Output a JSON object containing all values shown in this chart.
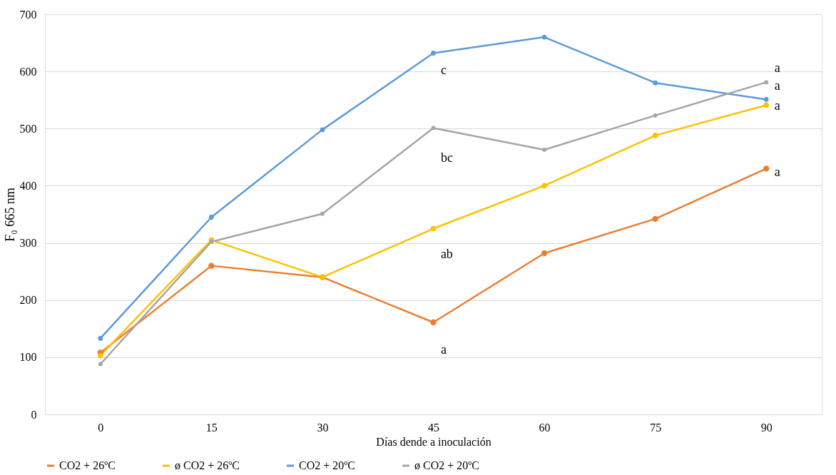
{
  "chart_data": {
    "type": "line",
    "xlabel": "Días dende a inoculación",
    "ylabel": "F₀ 665 nm",
    "categories": [
      "0",
      "15",
      "30",
      "45",
      "60",
      "75",
      "90"
    ],
    "series": [
      {
        "name": "CO2 + 26ºC",
        "color": "#ed7d31",
        "values": [
          108,
          260,
          240,
          161,
          282,
          342,
          430
        ]
      },
      {
        "name": "ø CO2 + 26ºC",
        "color": "#ffc000",
        "values": [
          103,
          305,
          240,
          325,
          400,
          488,
          541
        ]
      },
      {
        "name": "CO2 + 20ºC",
        "color": "#5b9bd5",
        "values": [
          133,
          345,
          498,
          632,
          660,
          580,
          551
        ]
      },
      {
        "name": "ø CO2 + 20ºC",
        "color": "#a5a5a5",
        "values": [
          88,
          302,
          351,
          501,
          463,
          523,
          581
        ]
      }
    ],
    "ylim": [
      0,
      700
    ],
    "yticks": [
      0,
      100,
      200,
      300,
      400,
      500,
      600,
      700
    ],
    "grid": "y",
    "legend": "bottom",
    "marker": "circle",
    "line_style": "solid",
    "annotations": [
      "c",
      "bc",
      "ab",
      "a",
      "a",
      "a",
      "a",
      "a"
    ]
  }
}
